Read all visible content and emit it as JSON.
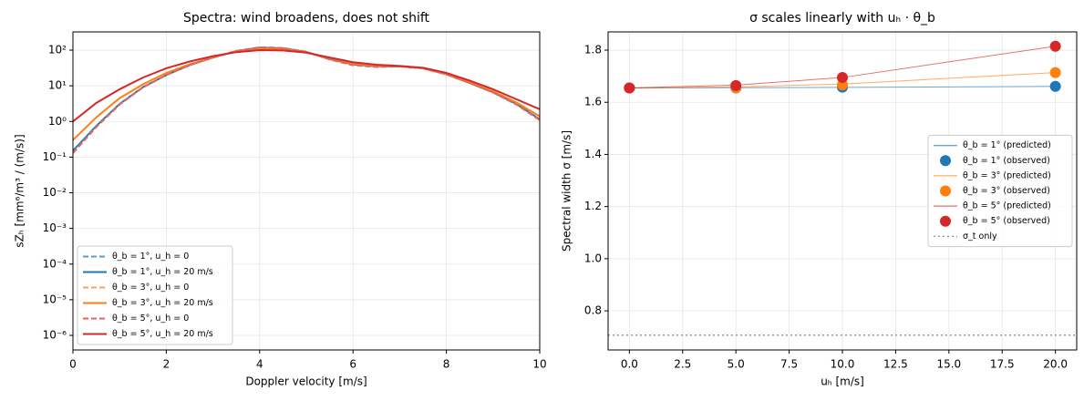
{
  "chart_data": [
    {
      "type": "line",
      "title": "Spectra: wind broadens, does not shift",
      "x_label": "Doppler velocity [m/s]",
      "y_label": "sZₕ [mm⁶/m³ / (m/s)]",
      "x": [
        0,
        0.5,
        1,
        1.5,
        2,
        2.5,
        3,
        3.5,
        4,
        4.5,
        5,
        5.5,
        6,
        6.5,
        7,
        7.5,
        8,
        8.5,
        9,
        9.5,
        10
      ],
      "series": [
        {
          "name": "θ_b = 1°, u_h = 0",
          "color": "#5b9bd0",
          "linestyle": "dashed",
          "values": [
            0.13,
            0.7,
            3,
            9,
            20,
            38,
            62,
            95,
            120,
            115,
            90,
            55,
            38,
            34,
            35,
            31,
            21,
            12,
            6.5,
            3,
            1.1
          ]
        },
        {
          "name": "θ_b = 1°, u_h = 20 m/s",
          "color": "#1f77b4",
          "linestyle": "solid",
          "values": [
            0.15,
            0.75,
            3.1,
            9.2,
            20,
            38,
            62,
            94,
            118,
            113,
            89,
            56,
            40,
            35,
            35,
            31,
            21,
            12,
            6.6,
            3.1,
            1.15
          ]
        },
        {
          "name": "θ_b = 3°, u_h = 0",
          "color": "#f9a65a",
          "linestyle": "dashed",
          "values": [
            0.13,
            0.7,
            3,
            9,
            20,
            38,
            62,
            95,
            120,
            115,
            90,
            55,
            38,
            34,
            35,
            31,
            21,
            12,
            6.5,
            3,
            1.1
          ]
        },
        {
          "name": "θ_b = 3°, u_h = 20 m/s",
          "color": "#ff7f0e",
          "linestyle": "solid",
          "values": [
            0.3,
            1.3,
            4.5,
            11,
            23,
            40,
            63,
            92,
            112,
            108,
            87,
            58,
            42,
            36,
            35,
            31,
            21,
            12.5,
            7,
            3.4,
            1.4
          ]
        },
        {
          "name": "θ_b = 5°, u_h = 0",
          "color": "#e06666",
          "linestyle": "dashed",
          "values": [
            0.13,
            0.7,
            3,
            9,
            20,
            38,
            62,
            95,
            120,
            115,
            90,
            55,
            38,
            34,
            35,
            31,
            21,
            12,
            6.5,
            3,
            1.1
          ]
        },
        {
          "name": "θ_b = 5°, u_h = 20 m/s",
          "color": "#d62728",
          "linestyle": "solid",
          "values": [
            1.0,
            3.3,
            8,
            17,
            31,
            48,
            68,
            88,
            100,
            98,
            85,
            62,
            46,
            39,
            36,
            32,
            23,
            14,
            8,
            4.2,
            2.2
          ]
        }
      ],
      "xlim": [
        0,
        10
      ],
      "xticks": [
        0,
        2,
        4,
        6,
        8,
        10
      ],
      "log_y": true,
      "ylim": [
        3.9e-07,
        325
      ],
      "yticks": [
        {
          "value": 1e-06,
          "label": "10⁻⁶"
        },
        {
          "value": 1e-05,
          "label": "10⁻⁵"
        },
        {
          "value": 0.0001,
          "label": "10⁻⁴"
        },
        {
          "value": 0.001,
          "label": "10⁻³"
        },
        {
          "value": 0.01,
          "label": "10⁻²"
        },
        {
          "value": 0.1,
          "label": "10⁻¹"
        },
        {
          "value": 1,
          "label": "10⁰"
        },
        {
          "value": 10,
          "label": "10¹"
        },
        {
          "value": 100,
          "label": "10²"
        }
      ],
      "grid": true,
      "legend": "lower left"
    },
    {
      "type": "line",
      "title": "σ scales linearly with uₕ · θ_b",
      "x_label": "uₕ [m/s]",
      "y_label": "Spectral width σ [m/s]",
      "x": [
        0,
        5,
        10,
        20
      ],
      "series": [
        {
          "name": "θ_b = 1° (predicted)",
          "color": "#1f77b4",
          "style": "line",
          "values": [
            1.655,
            1.656,
            1.657,
            1.661
          ]
        },
        {
          "name": "θ_b = 1° (observed)",
          "color": "#1f77b4",
          "style": "marker",
          "values": [
            1.655,
            1.655,
            1.658,
            1.661
          ]
        },
        {
          "name": "θ_b = 3° (predicted)",
          "color": "#ff7f0e",
          "style": "line",
          "values": [
            1.655,
            1.659,
            1.67,
            1.714
          ]
        },
        {
          "name": "θ_b = 3° (observed)",
          "color": "#ff7f0e",
          "style": "marker",
          "values": [
            1.655,
            1.656,
            1.667,
            1.714
          ]
        },
        {
          "name": "θ_b = 5° (predicted)",
          "color": "#d62728",
          "style": "line",
          "values": [
            1.655,
            1.666,
            1.695,
            1.815
          ]
        },
        {
          "name": "θ_b = 5° (observed)",
          "color": "#d62728",
          "style": "marker",
          "values": [
            1.655,
            1.664,
            1.695,
            1.815
          ]
        }
      ],
      "reference_line": {
        "name": "σ_t only",
        "value": 0.707,
        "color": "#999999",
        "linestyle": "dotted"
      },
      "xlim": [
        -1,
        21
      ],
      "xticks": [
        {
          "value": 0,
          "label": "0.0"
        },
        {
          "value": 2.5,
          "label": "2.5"
        },
        {
          "value": 5,
          "label": "5.0"
        },
        {
          "value": 7.5,
          "label": "7.5"
        },
        {
          "value": 10,
          "label": "10.0"
        },
        {
          "value": 12.5,
          "label": "12.5"
        },
        {
          "value": 15,
          "label": "15.0"
        },
        {
          "value": 17.5,
          "label": "17.5"
        },
        {
          "value": 20,
          "label": "20.0"
        }
      ],
      "ylim": [
        0.65,
        1.87
      ],
      "yticks": [
        0.8,
        {
          "value": 1,
          "label": "1.0"
        },
        1.2,
        1.4,
        1.6,
        1.8
      ],
      "grid": true,
      "legend": "center right"
    }
  ]
}
